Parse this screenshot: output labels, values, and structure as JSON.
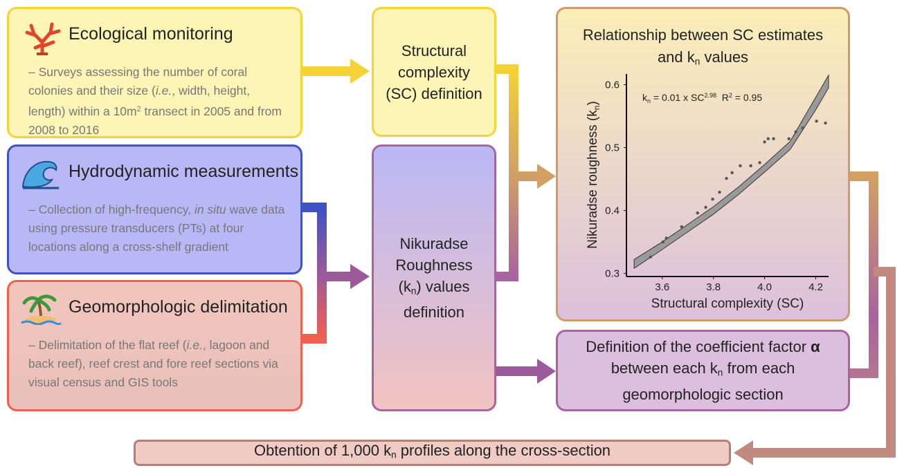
{
  "boxes": {
    "ecological": {
      "title": "Ecological monitoring",
      "body": [
        "– Surveys assessing the number of coral colonies and their size (",
        "i.e.",
        ", width, height, length) within a 10m",
        "2",
        " transect in 2005 and from 2008 to 2016"
      ]
    },
    "hydro": {
      "title": "Hydrodynamic measurements",
      "body": [
        "– Collection of high-frequency, ",
        "in situ",
        " wave data using pressure transducers (PTs) at four locations along a cross-shelf gradient"
      ]
    },
    "geomorph": {
      "title": "Geomorphologic delimitation",
      "body": [
        "– Delimitation of the flat reef (",
        "i.e.",
        ", lagoon and back reef), reef crest and fore reef sections via visual census and GIS tools"
      ]
    },
    "sc_definition": "Structural complexity (SC) definition",
    "kn_definition": [
      "Nikuradse Roughness (k",
      "n",
      ") values definition"
    ],
    "relationship": [
      "Relationship between SC estimates and k",
      "n",
      " values"
    ],
    "alpha": [
      "Definition of the coefficient factor ",
      "α",
      " between each k",
      "n",
      " from each geomorphologic section"
    ],
    "profiles": [
      "Obtention of 1,000 k",
      "n",
      " profiles along the cross-section"
    ]
  },
  "chart": {
    "type": "scatter",
    "x_label": "Structural complexity (SC)",
    "y_label": [
      "Nikuradse roughness (k",
      "n",
      ")"
    ],
    "equation": [
      "k",
      "n",
      " = 0.01 x SC",
      "2.98",
      "  R",
      "2",
      " = 0.95"
    ],
    "xlim": [
      3.46,
      4.25
    ],
    "ylim": [
      0.295,
      0.617
    ],
    "xticks": [
      3.6,
      3.8,
      {
        "value": 4.0,
        "label": "4.0"
      },
      4.2
    ],
    "yticks": [
      0.3,
      0.4,
      0.5,
      0.6
    ],
    "x": [
      3.554,
      3.603,
      3.616,
      3.676,
      3.738,
      3.77,
      3.797,
      3.824,
      3.851,
      3.873,
      3.905,
      3.946,
      3.981,
      4.0,
      4.014,
      4.035,
      4.095,
      4.122,
      4.149,
      4.203,
      4.238
    ],
    "y": [
      0.326,
      0.35,
      0.356,
      0.374,
      0.396,
      0.405,
      0.418,
      0.429,
      0.451,
      0.46,
      0.471,
      0.471,
      0.476,
      0.509,
      0.514,
      0.514,
      0.514,
      0.525,
      0.531,
      0.542,
      0.539
    ],
    "fit": {
      "x": [
        3.49,
        3.6,
        3.7,
        3.8,
        3.9,
        4.0,
        4.1,
        4.2,
        4.25
      ],
      "lower": [
        0.308,
        0.338,
        0.366,
        0.394,
        0.426,
        0.461,
        0.497,
        0.56,
        0.595
      ],
      "upper": [
        0.322,
        0.35,
        0.378,
        0.406,
        0.438,
        0.473,
        0.51,
        0.58,
        0.615
      ]
    },
    "color": "#555555"
  }
}
